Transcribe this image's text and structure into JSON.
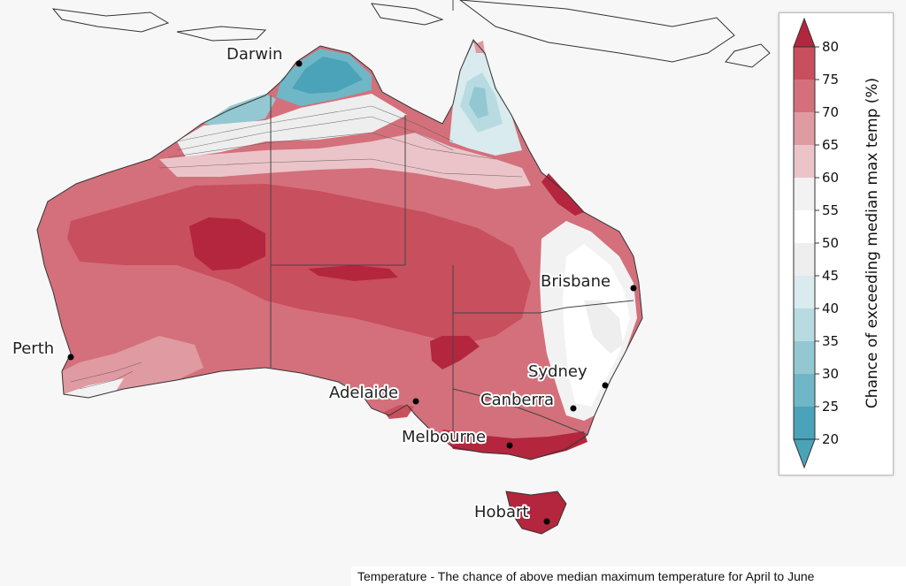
{
  "cities": [
    {
      "name": "Darwin"
    },
    {
      "name": "Perth"
    },
    {
      "name": "Brisbane"
    },
    {
      "name": "Sydney"
    },
    {
      "name": "Canberra"
    },
    {
      "name": "Adelaide"
    },
    {
      "name": "Melbourne"
    },
    {
      "name": "Hobart"
    }
  ],
  "legend": {
    "title": "Chance of exceeding median max temp (%)",
    "ticks": [
      "80",
      "75",
      "70",
      "65",
      "60",
      "55",
      "50",
      "45",
      "40",
      "35",
      "30",
      "25",
      "20"
    ],
    "colors": {
      "c20": "#4aa3b8",
      "c25": "#6fb7c6",
      "c30": "#93c8d2",
      "c35": "#b7dbe1",
      "c40": "#d9ebee",
      "c45": "#eeeeee",
      "c50": "#ffffff",
      "c55": "#f2f2f2",
      "c60": "#ebc4c9",
      "c65": "#e09aa2",
      "c70": "#d4707b",
      "c75": "#c84f5d",
      "c80": "#b3263d"
    }
  },
  "caption": "Temperature - The chance of above median maximum temperature for April to June"
}
